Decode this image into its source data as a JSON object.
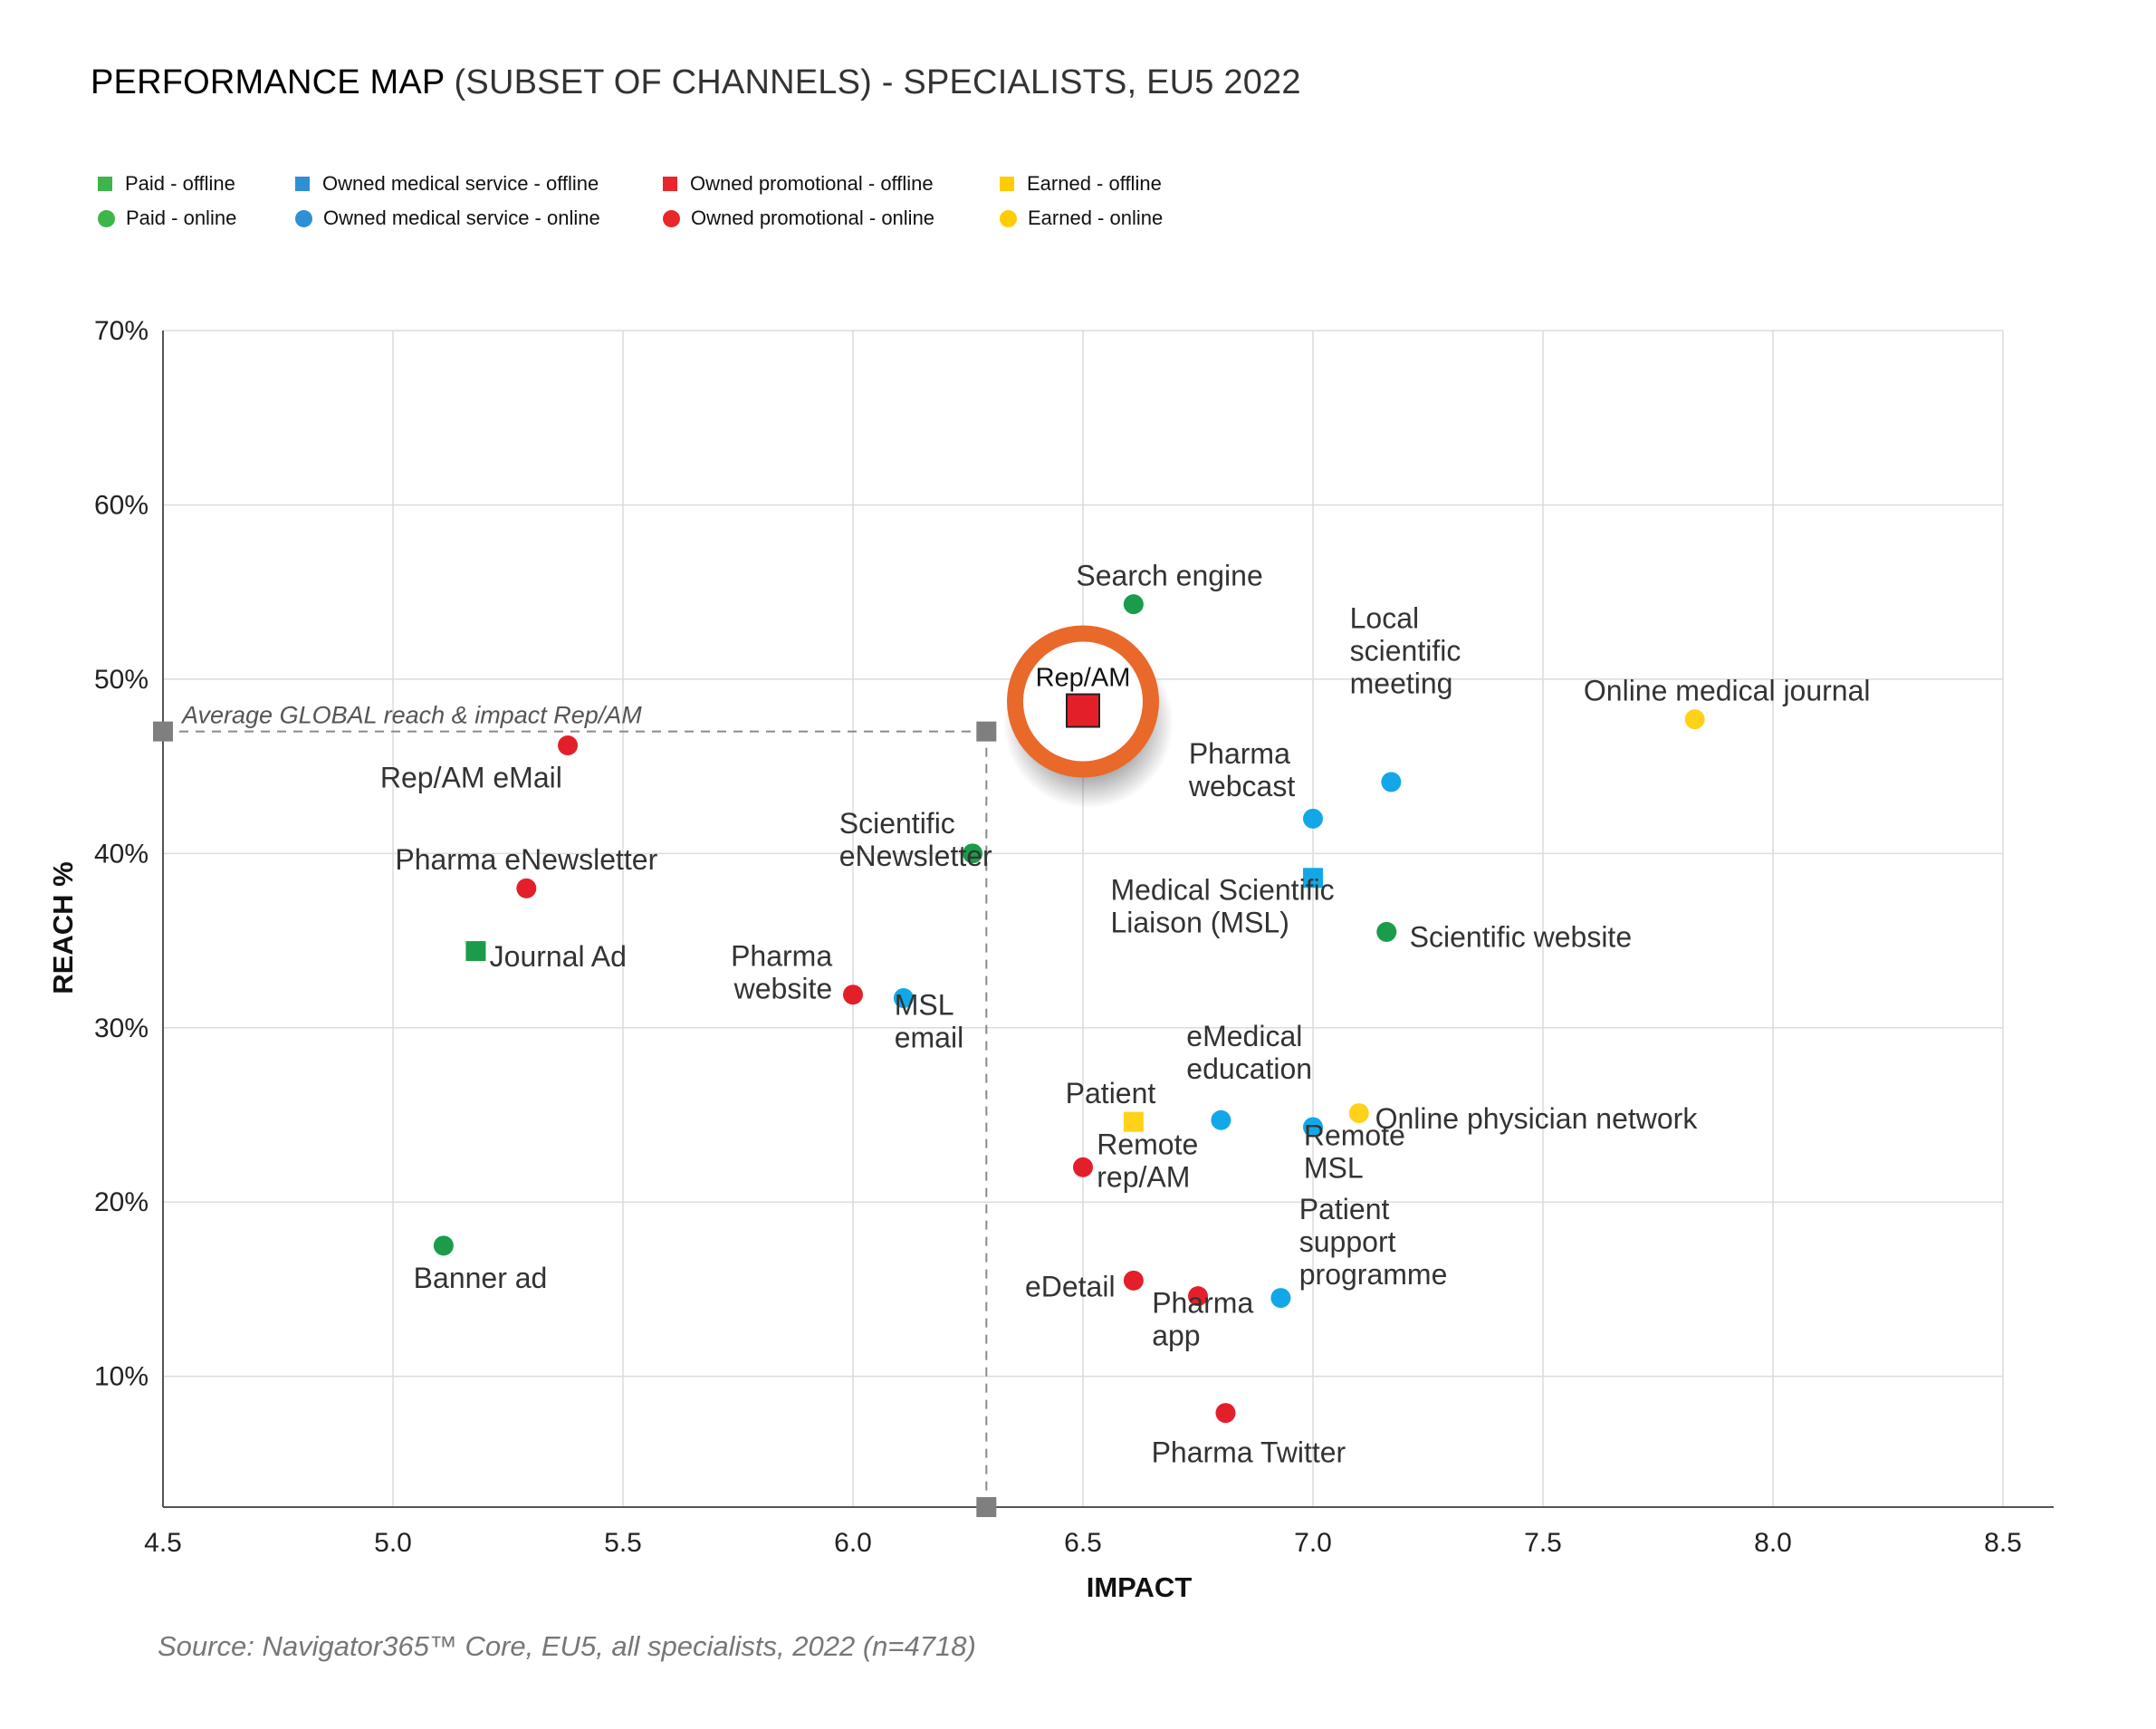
{
  "title": {
    "main": "PERFORMANCE MAP",
    "sub": " (SUBSET OF CHANNELS) - SPECIALISTS, EU5 2022"
  },
  "source": "Source: Navigator365™ Core, EU5, all specialists, 2022 (n=4718)",
  "legend": [
    {
      "label": "Paid - offline",
      "shape": "square",
      "color": "#3db54a"
    },
    {
      "label": "Paid - online",
      "shape": "circle",
      "color": "#3db54a"
    },
    {
      "label": "Owned medical service - offline",
      "shape": "square",
      "color": "#2e8fd6"
    },
    {
      "label": "Owned medical service - online",
      "shape": "circle",
      "color": "#2e8fd6"
    },
    {
      "label": "Owned promotional - offline",
      "shape": "square",
      "color": "#e8262b"
    },
    {
      "label": "Owned promotional - online",
      "shape": "circle",
      "color": "#e8262b"
    },
    {
      "label": "Earned - offline",
      "shape": "square",
      "color": "#ffcc00"
    },
    {
      "label": "Earned - online",
      "shape": "circle",
      "color": "#ffcc00"
    }
  ],
  "colors": {
    "paid": "#1a9c4a",
    "owned_medical": "#12a8e8",
    "owned_promotional": "#e3202a",
    "earned": "#ffd21a",
    "highlight_ring": "#e8692a",
    "average_marker": "#7f7f7f",
    "grid": "#dcdcdc"
  },
  "chart_data": {
    "type": "scatter",
    "xlabel": "IMPACT",
    "ylabel": "REACH %",
    "xlim": [
      4.5,
      8.5
    ],
    "ylim": [
      2.5,
      70
    ],
    "xticks": [
      4.5,
      5.0,
      5.5,
      6.0,
      6.5,
      7.0,
      7.5,
      8.0,
      8.5
    ],
    "xtick_labels": [
      "4.5",
      "5.0",
      "5.5",
      "6.0",
      "6.5",
      "7.0",
      "7.5",
      "8.0",
      "8.5"
    ],
    "yticks": [
      10,
      20,
      30,
      40,
      50,
      60,
      70
    ],
    "ytick_labels": [
      "10%",
      "20%",
      "30%",
      "40%",
      "50%",
      "60%",
      "70%"
    ],
    "grid": true,
    "average": {
      "label": "Average GLOBAL reach & impact Rep/AM",
      "x": 6.29,
      "y": 47
    },
    "points": [
      {
        "name": "Search engine",
        "lines": [
          "Search engine"
        ],
        "x": 6.61,
        "y": 54.3,
        "cat": "paid",
        "shape": "circle",
        "anchor": "start",
        "lx": -0.125,
        "ly": 1.6
      },
      {
        "name": "Rep/AM",
        "lines": [
          "Rep/AM"
        ],
        "x": 6.5,
        "y": 48.2,
        "cat": "owned_promotional",
        "shape": "square",
        "highlight": true,
        "anchor": "middle",
        "lx": 0,
        "ly": 1.4
      },
      {
        "name": "Online medical journal",
        "lines": [
          "Online medical journal"
        ],
        "x": 7.83,
        "y": 47.7,
        "cat": "earned",
        "shape": "circle",
        "anchor": "middle",
        "lx": 0.07,
        "ly": 1.6
      },
      {
        "name": "Rep/AM eMail",
        "lines": [
          "Rep/AM eMail"
        ],
        "x": 5.38,
        "y": 46.2,
        "cat": "owned_promotional",
        "shape": "circle",
        "anchor": "middle",
        "lx": -0.21,
        "ly": -1.9
      },
      {
        "name": "Local scientific meeting",
        "lines": [
          "Local",
          "scientific",
          "meeting"
        ],
        "x": 7.17,
        "y": 44.1,
        "cat": "owned_medical",
        "shape": "circle",
        "anchor": "start",
        "lx": -0.09,
        "ly": 5.6
      },
      {
        "name": "Pharma webcast",
        "lines": [
          "Pharma",
          "webcast"
        ],
        "x": 7.0,
        "y": 42.0,
        "cat": "owned_medical",
        "shape": "circle",
        "anchor": "start",
        "lx": -0.27,
        "ly": 1.8
      },
      {
        "name": "Scientific eNewsletter",
        "lines": [
          "Scientific",
          "eNewsletter"
        ],
        "x": 6.26,
        "y": 40.0,
        "cat": "paid",
        "shape": "circle",
        "anchor": "start",
        "lx": -0.29,
        "ly": -0.2
      },
      {
        "name": "Medical Scientific Liaison (MSL)",
        "lines": [
          "Medical Scientific",
          "Liaison (MSL)"
        ],
        "x": 7.0,
        "y": 38.6,
        "cat": "owned_medical",
        "shape": "square",
        "anchor": "start",
        "lx": -0.44,
        "ly": -2.6
      },
      {
        "name": "Pharma eNewsletter",
        "lines": [
          "Pharma eNewsletter"
        ],
        "x": 5.29,
        "y": 38.0,
        "cat": "owned_promotional",
        "shape": "circle",
        "anchor": "middle",
        "lx": 0.0,
        "ly": 1.6
      },
      {
        "name": "Scientific website",
        "lines": [
          "Scientific website"
        ],
        "x": 7.16,
        "y": 35.5,
        "cat": "paid",
        "shape": "circle",
        "anchor": "start",
        "lx": 0.05,
        "ly": -0.35
      },
      {
        "name": "Journal Ad",
        "lines": [
          "Journal Ad"
        ],
        "x": 5.18,
        "y": 34.4,
        "cat": "paid",
        "shape": "square",
        "anchor": "start",
        "lx": 0.03,
        "ly": -0.35
      },
      {
        "name": "Pharma website",
        "lines": [
          "Pharma",
          "website"
        ],
        "x": 6.0,
        "y": 31.9,
        "cat": "owned_promotional",
        "shape": "circle",
        "anchor": "end",
        "lx": -0.045,
        "ly": 0.3
      },
      {
        "name": "MSL email",
        "lines": [
          "MSL",
          "email"
        ],
        "x": 6.11,
        "y": 31.7,
        "cat": "owned_medical",
        "shape": "circle",
        "anchor": "start",
        "lx": -0.02,
        "ly": -2.3
      },
      {
        "name": "Online physician network",
        "lines": [
          "Online physician network"
        ],
        "x": 7.1,
        "y": 25.1,
        "cat": "earned",
        "shape": "circle",
        "anchor": "start",
        "lx": 0.035,
        "ly": -0.35
      },
      {
        "name": "eMedical education",
        "lines": [
          "eMedical",
          "education"
        ],
        "x": 6.8,
        "y": 24.7,
        "cat": "owned_medical",
        "shape": "circle",
        "anchor": "start",
        "lx": -0.075,
        "ly": 2.9
      },
      {
        "name": "Patient",
        "lines": [
          "Patient"
        ],
        "x": 6.61,
        "y": 24.6,
        "cat": "earned",
        "shape": "square",
        "anchor": "middle",
        "lx": -0.05,
        "ly": 1.6
      },
      {
        "name": "Remote MSL",
        "lines": [
          "Remote",
          "MSL"
        ],
        "x": 7.0,
        "y": 24.3,
        "cat": "owned_medical",
        "shape": "circle",
        "anchor": "start",
        "lx": -0.02,
        "ly": -2.4
      },
      {
        "name": "Remote rep/AM",
        "lines": [
          "Remote",
          "rep/AM"
        ],
        "x": 6.5,
        "y": 22.0,
        "cat": "owned_promotional",
        "shape": "circle",
        "anchor": "start",
        "lx": 0.03,
        "ly": -0.6
      },
      {
        "name": "Banner ad",
        "lines": [
          "Banner ad"
        ],
        "x": 5.11,
        "y": 17.5,
        "cat": "paid",
        "shape": "circle",
        "anchor": "middle",
        "lx": 0.08,
        "ly": -1.9
      },
      {
        "name": "eDetail",
        "lines": [
          "eDetail"
        ],
        "x": 6.61,
        "y": 15.5,
        "cat": "owned_promotional",
        "shape": "circle",
        "anchor": "end",
        "lx": -0.04,
        "ly": -0.4
      },
      {
        "name": "Pharma app",
        "lines": [
          "Pharma",
          "app"
        ],
        "x": 6.75,
        "y": 14.6,
        "cat": "owned_promotional",
        "shape": "circle",
        "anchor": "start",
        "lx": -0.1,
        "ly": -2.3
      },
      {
        "name": "Patient support programme",
        "lines": [
          "Patient",
          "support",
          "programme"
        ],
        "x": 6.93,
        "y": 14.5,
        "cat": "owned_medical",
        "shape": "circle",
        "anchor": "start",
        "lx": 0.04,
        "ly": 1.3
      },
      {
        "name": "Pharma Twitter",
        "lines": [
          "Pharma Twitter"
        ],
        "x": 6.81,
        "y": 7.9,
        "cat": "owned_promotional",
        "shape": "circle",
        "anchor": "middle",
        "lx": 0.05,
        "ly": -2.3
      }
    ]
  }
}
